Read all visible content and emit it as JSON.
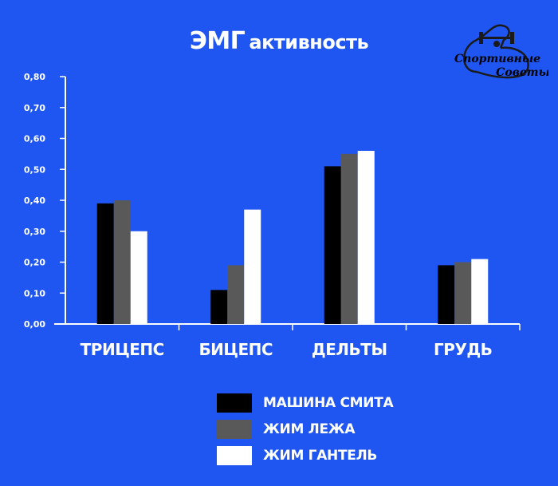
{
  "chart_data": {
    "type": "bar",
    "title_main": "ЭМГ",
    "title_rest": "активность",
    "categories": [
      "ТРИЦЕПС",
      "БИЦЕПС",
      "ДЕЛЬТЫ",
      "ГРУДЬ"
    ],
    "series": [
      {
        "name": "МАШИНА СМИТА",
        "color": "#000000",
        "values": [
          0.39,
          0.11,
          0.51,
          0.19
        ]
      },
      {
        "name": "ЖИМ ЛЕЖА",
        "color": "#595959",
        "values": [
          0.4,
          0.19,
          0.55,
          0.2
        ]
      },
      {
        "name": "ЖИМ ГАНТЕЛЬ",
        "color": "#ffffff",
        "values": [
          0.3,
          0.37,
          0.56,
          0.21
        ]
      }
    ],
    "yticks": [
      "0,00",
      "0,10",
      "0,20",
      "0,30",
      "0,40",
      "0,50",
      "0,60",
      "0,70",
      "0,80"
    ],
    "ylim": [
      0,
      0.8
    ],
    "grid": false,
    "legend_position": "bottom"
  },
  "logo": {
    "line1": "Спортивные",
    "line2": "Советы"
  },
  "colors": {
    "background": "#1f56f2",
    "axis": "#ffffff",
    "text": "#ffffff"
  }
}
